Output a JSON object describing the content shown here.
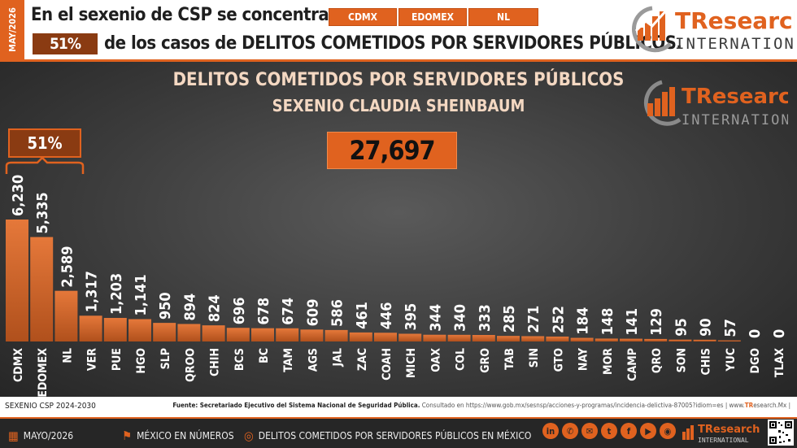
{
  "header": {
    "date_vertical": "MAY/2026",
    "line1_text": "En el sexenio de CSP se concentran en",
    "chips": [
      "CDMX",
      "EDOMEX",
      "NL"
    ],
    "percent": "51%",
    "line2_text": "de los casos de DELITOS COMETIDOS POR SERVIDORES PÚBLICOS."
  },
  "brand": {
    "name_top": "TResearch",
    "name_bottom": "INTERNATIONAL"
  },
  "panel": {
    "title": "DELITOS COMETIDOS POR SERVIDORES PÚBLICOS",
    "subtitle": "SEXENIO CLAUDIA SHEINBAUM",
    "total": "27,697",
    "bracket_percent": "51%"
  },
  "footer": {
    "left_note": "SEXENIO CSP 2024-2030",
    "source_label": "Fuente: Secretariado Ejecutivo del Sistema Nacional de Seguridad Pública.",
    "source_url": " Consultado en https://www.gob.mx/sesnsp/acciones-y-programas/incidencia-delictiva-87005?idiom=es | www.",
    "source_site_brand": "TR",
    "source_site_rest": "esearch.Mx |",
    "item_date": "MAYO/2026",
    "item_mexico": "MÉXICO EN NÚMEROS",
    "item_topic": "DELITOS COMETIDOS POR SERVIDORES PÚBLICOS EN MÉXICO",
    "socials": [
      "in",
      "✆",
      "✉",
      "t",
      "f",
      "▶",
      "◉"
    ]
  },
  "colors": {
    "accent": "#e0621f",
    "dark_accent": "#8a3b12",
    "panel_dark": "#3c3c3c"
  },
  "chart_data": {
    "type": "bar",
    "title": "DELITOS COMETIDOS POR SERVIDORES PÚBLICOS",
    "subtitle": "SEXENIO CLAUDIA SHEINBAUM",
    "categories": [
      "CDMX",
      "EDOMEX",
      "NL",
      "VER",
      "PUE",
      "HGO",
      "SLP",
      "QROO",
      "CHIH",
      "BCS",
      "BC",
      "TAM",
      "AGS",
      "JAL",
      "ZAC",
      "COAH",
      "MICH",
      "OAX",
      "COL",
      "GRO",
      "TAB",
      "SIN",
      "GTO",
      "NAY",
      "MOR",
      "CAMP",
      "QRO",
      "SON",
      "CHIS",
      "YUC",
      "DGO",
      "TLAX"
    ],
    "values": [
      6230,
      5335,
      2589,
      1317,
      1203,
      1141,
      950,
      894,
      824,
      696,
      678,
      674,
      609,
      586,
      461,
      446,
      395,
      344,
      340,
      333,
      285,
      271,
      252,
      184,
      148,
      141,
      129,
      95,
      90,
      57,
      0,
      0
    ],
    "value_labels": [
      "6,230",
      "5,335",
      "2,589",
      "1,317",
      "1,203",
      "1,141",
      "950",
      "894",
      "824",
      "696",
      "678",
      "674",
      "609",
      "586",
      "461",
      "446",
      "395",
      "344",
      "340",
      "333",
      "285",
      "271",
      "252",
      "184",
      "148",
      "141",
      "129",
      "95",
      "90",
      "57",
      "0",
      "0"
    ],
    "total": "27,697",
    "ylim": [
      0,
      6230
    ]
  }
}
